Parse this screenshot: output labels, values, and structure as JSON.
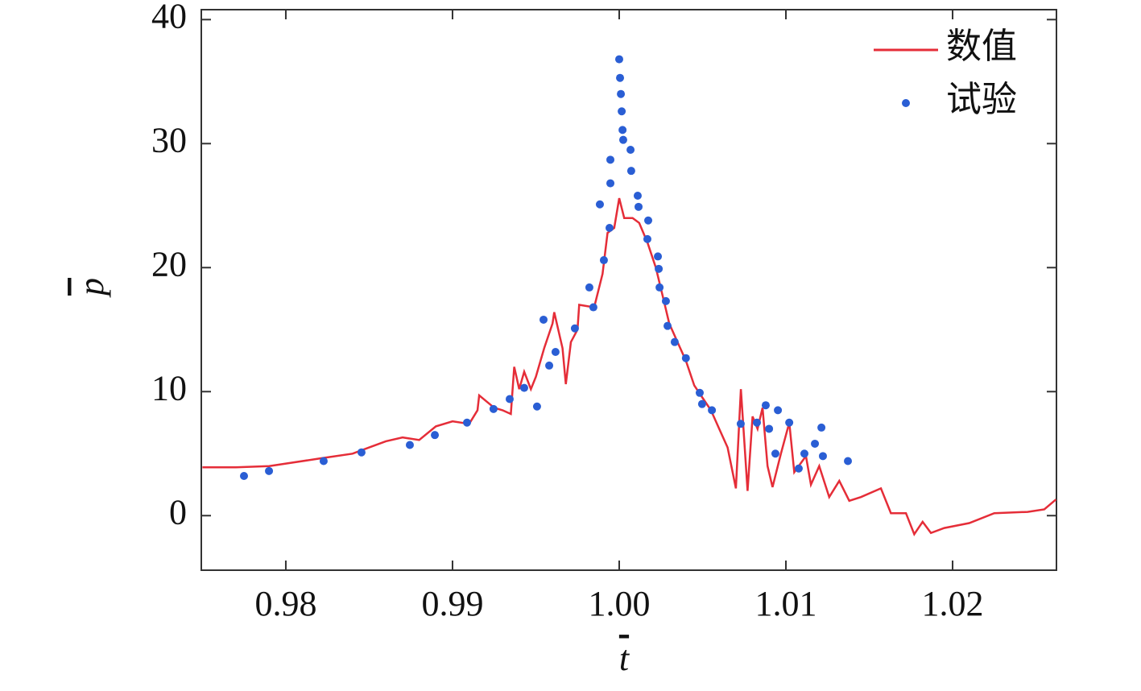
{
  "chart_data": {
    "type": "line",
    "xlabel": "t",
    "ylabel": "p",
    "xlim": [
      0.97493,
      1.02623
    ],
    "ylim": [
      -4.4,
      40.8
    ],
    "xticks": [
      0.98,
      0.99,
      {
        "value": 1,
        "label": "1.00"
      },
      1.01,
      1.02
    ],
    "yticks": [
      0,
      10,
      20,
      30,
      40
    ],
    "grid": false,
    "legend": "upper right",
    "series": [
      {
        "name": "数值",
        "color": "#e52d38",
        "style": "line",
        "x": [
          0.975,
          0.977,
          0.979,
          0.98,
          0.982,
          0.984,
          0.985,
          0.986,
          0.987,
          0.988,
          0.989,
          0.99,
          0.991,
          0.9915,
          0.9916,
          0.9925,
          0.993,
          0.9935,
          0.9937,
          0.994,
          0.9943,
          0.9947,
          0.995,
          0.9955,
          0.996,
          0.9961,
          0.9966,
          0.9968,
          0.9971,
          0.9975,
          0.9976,
          0.9985,
          0.999,
          0.9993,
          0.9997,
          1.0,
          1.0003,
          1.0008,
          1.0012,
          1.0017,
          1.0022,
          1.0027,
          1.003,
          1.0035,
          1.004,
          1.0045,
          1.005,
          1.0055,
          1.006,
          1.0065,
          1.007,
          1.0073,
          1.0077,
          1.008,
          1.0083,
          1.0086,
          1.0089,
          1.0092,
          1.0097,
          1.0102,
          1.0105,
          1.0112,
          1.0115,
          1.012,
          1.0126,
          1.0132,
          1.0138,
          1.0145,
          1.0157,
          1.0163,
          1.0172,
          1.0177,
          1.0182,
          1.0187,
          1.0195,
          1.021,
          1.0225,
          1.0245,
          1.0255,
          1.0262
        ],
        "values": [
          3.9,
          3.9,
          4.0,
          4.2,
          4.6,
          5.0,
          5.5,
          6.0,
          6.3,
          6.1,
          7.2,
          7.6,
          7.4,
          8.5,
          9.7,
          8.7,
          8.5,
          8.2,
          12.0,
          10.2,
          11.6,
          10.2,
          11.2,
          13.5,
          15.5,
          16.4,
          13.5,
          10.6,
          14.0,
          15.0,
          17.0,
          16.8,
          19.5,
          22.8,
          23.2,
          25.6,
          24.0,
          24.0,
          23.6,
          22.0,
          20.0,
          17.2,
          15.5,
          14.0,
          12.5,
          10.5,
          9.5,
          8.5,
          7.0,
          5.5,
          2.2,
          10.2,
          2.0,
          8.0,
          7.0,
          8.7,
          4.0,
          2.3,
          5.0,
          7.5,
          3.5,
          4.8,
          2.5,
          4.0,
          1.5,
          2.8,
          1.2,
          1.5,
          2.2,
          0.2,
          0.2,
          -1.5,
          -0.5,
          -1.4,
          -1.0,
          -0.6,
          0.2,
          0.3,
          0.5,
          1.3
        ]
      },
      {
        "name": "试验",
        "color": "#2a5ed4",
        "style": "markers",
        "x": [
          0.97749,
          0.97899,
          0.98227,
          0.98454,
          0.98744,
          0.98894,
          0.99087,
          0.99246,
          0.99343,
          0.9943,
          0.99507,
          0.99546,
          0.9958,
          0.99618,
          0.99734,
          0.99821,
          0.99845,
          0.99884,
          0.99908,
          0.99942,
          0.99947,
          0.99947,
          1.0,
          1.00005,
          1.0001,
          1.00015,
          1.0002,
          1.00024,
          1.00068,
          1.00072,
          1.00111,
          1.00116,
          1.00174,
          1.00169,
          1.00232,
          1.00237,
          1.00242,
          1.0028,
          1.0029,
          1.00333,
          1.004,
          1.00483,
          1.00497,
          1.00556,
          1.00729,
          1.00826,
          1.00879,
          1.00899,
          1.00937,
          1.00952,
          1.0102,
          1.01077,
          1.01111,
          1.01174,
          1.01213,
          1.01222,
          1.01372
        ],
        "values": [
          3.2,
          3.6,
          4.4,
          5.1,
          5.7,
          6.5,
          7.5,
          8.6,
          9.4,
          10.3,
          8.8,
          15.8,
          12.1,
          13.2,
          15.1,
          18.4,
          16.8,
          25.1,
          20.6,
          23.2,
          26.8,
          28.7,
          36.8,
          35.3,
          34.0,
          32.6,
          31.1,
          30.3,
          29.5,
          27.8,
          25.8,
          24.9,
          23.8,
          22.3,
          20.9,
          19.9,
          18.4,
          17.3,
          15.3,
          14.0,
          12.7,
          9.9,
          9.0,
          8.5,
          7.4,
          7.5,
          8.9,
          7.0,
          5.0,
          8.5,
          7.5,
          3.8,
          5.0,
          5.8,
          7.1,
          4.8,
          4.4
        ]
      }
    ]
  }
}
